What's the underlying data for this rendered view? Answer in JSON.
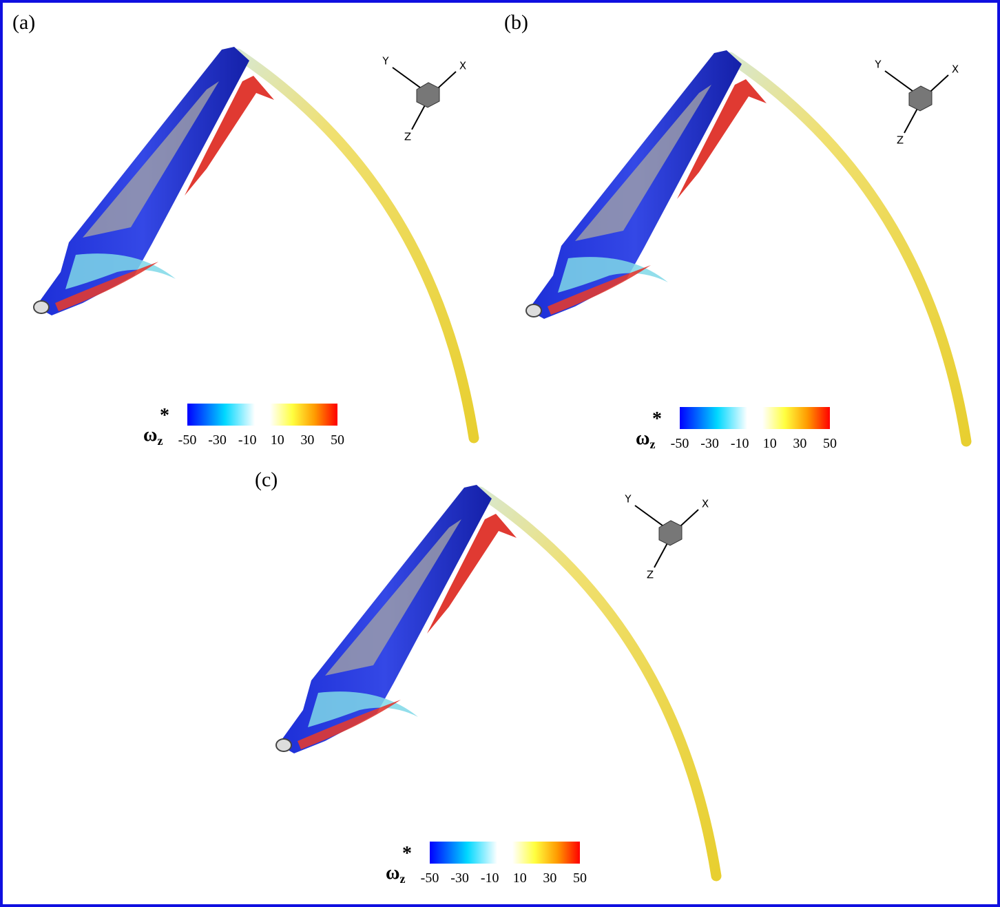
{
  "panels": [
    {
      "label": "(a)",
      "axes": {
        "x": "X",
        "y": "Y",
        "z": "Z"
      },
      "colorbar": {
        "symbol": "ω",
        "subscript": "z",
        "superscript": "*",
        "ticks": [
          -50,
          -30,
          -10,
          10,
          30,
          50
        ]
      }
    },
    {
      "label": "(b)",
      "axes": {
        "x": "X",
        "y": "Y",
        "z": "Z"
      },
      "colorbar": {
        "symbol": "ω",
        "subscript": "z",
        "superscript": "*",
        "ticks": [
          -50,
          -30,
          -10,
          10,
          30,
          50
        ]
      }
    },
    {
      "label": "(c)",
      "axes": {
        "x": "X",
        "y": "Y",
        "z": "Z"
      },
      "colorbar": {
        "symbol": "ω",
        "subscript": "z",
        "superscript": "*",
        "ticks": [
          -50,
          -30,
          -10,
          10,
          30,
          50
        ]
      }
    }
  ]
}
